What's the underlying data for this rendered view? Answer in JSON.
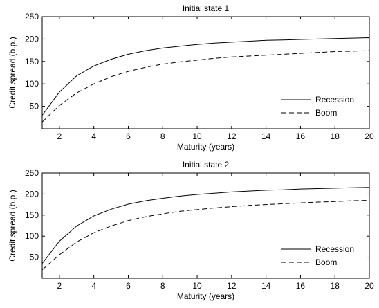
{
  "chart_data": [
    {
      "type": "line",
      "title": "Initial state 1",
      "xlabel": "Maturity (years)",
      "ylabel": "Credit spread (b.p.)",
      "xlim": [
        1,
        20
      ],
      "ylim": [
        0,
        250
      ],
      "xticks": [
        2,
        4,
        6,
        8,
        10,
        12,
        14,
        16,
        18,
        20
      ],
      "yticks": [
        50,
        100,
        150,
        200,
        250
      ],
      "grid": false,
      "legend_position": "lower-right",
      "x": [
        1,
        2,
        3,
        4,
        5,
        6,
        7,
        8,
        9,
        10,
        11,
        12,
        13,
        14,
        15,
        16,
        17,
        18,
        19,
        20
      ],
      "series": [
        {
          "name": "Recession",
          "line_style": "solid",
          "color": "#000000",
          "values": [
            30,
            82,
            118,
            140,
            155,
            166,
            174,
            180,
            184,
            188,
            191,
            193,
            195,
            197,
            198,
            199,
            200,
            201,
            202,
            203
          ]
        },
        {
          "name": "Boom",
          "line_style": "dashed",
          "color": "#000000",
          "values": [
            15,
            52,
            80,
            100,
            116,
            128,
            137,
            144,
            149,
            153,
            157,
            160,
            162,
            164,
            166,
            168,
            170,
            172,
            173,
            174
          ]
        }
      ]
    },
    {
      "type": "line",
      "title": "Initial state 2",
      "xlabel": "Maturity (years)",
      "ylabel": "Credit spread (b.p.)",
      "xlim": [
        1,
        20
      ],
      "ylim": [
        0,
        250
      ],
      "xticks": [
        2,
        4,
        6,
        8,
        10,
        12,
        14,
        16,
        18,
        20
      ],
      "yticks": [
        50,
        100,
        150,
        200,
        250
      ],
      "grid": false,
      "legend_position": "lower-right",
      "x": [
        1,
        2,
        3,
        4,
        5,
        6,
        7,
        8,
        9,
        10,
        11,
        12,
        13,
        14,
        15,
        16,
        17,
        18,
        19,
        20
      ],
      "series": [
        {
          "name": "Recession",
          "line_style": "solid",
          "color": "#000000",
          "values": [
            35,
            88,
            124,
            148,
            164,
            176,
            184,
            190,
            195,
            199,
            202,
            205,
            207,
            209,
            210,
            212,
            213,
            214,
            215,
            216
          ]
        },
        {
          "name": "Boom",
          "line_style": "dashed",
          "color": "#000000",
          "values": [
            20,
            56,
            86,
            108,
            124,
            137,
            146,
            153,
            159,
            163,
            167,
            170,
            173,
            175,
            177,
            179,
            181,
            182,
            184,
            185
          ]
        }
      ]
    }
  ]
}
